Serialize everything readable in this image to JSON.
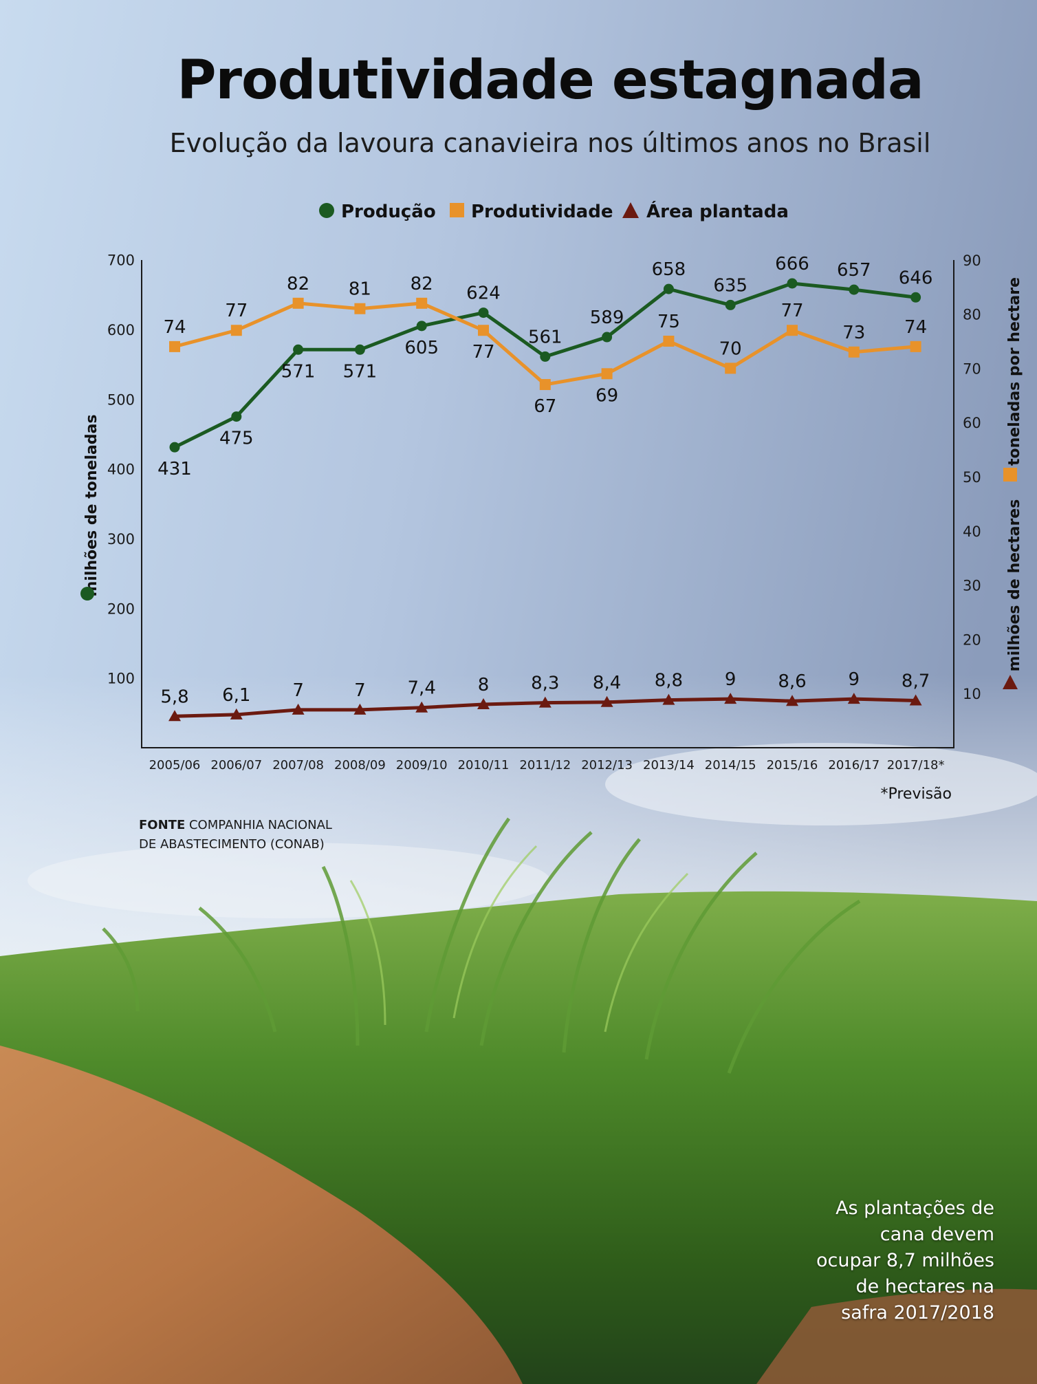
{
  "header": {
    "title": "Produtividade estagnada",
    "subtitle": "Evolução da lavoura canavieira nos últimos anos no Brasil"
  },
  "source": {
    "label": "FONTE",
    "line1": "COMPANHIA NACIONAL",
    "line2": "DE ABASTECIMENTO (CONAB)"
  },
  "footnote": "*Previsão",
  "caption": {
    "line1": "As plantações de",
    "line2": "cana devem",
    "line3": "ocupar 8,7 milhões",
    "line4": "de hectares na",
    "line5": "safra 2017/2018"
  },
  "colors": {
    "producao": "#1b5a21",
    "produtividade": "#e8922a",
    "area": "#6b1a10",
    "axis": "#1a1a1a"
  },
  "chart_data": {
    "type": "line",
    "title": "Produtividade estagnada",
    "subtitle": "Evolução da lavoura canavieira nos últimos anos no Brasil",
    "categories": [
      "2005/06",
      "2006/07",
      "2007/08",
      "2008/09",
      "2009/10",
      "2010/11",
      "2011/12",
      "2012/13",
      "2013/14",
      "2014/15",
      "2015/16",
      "2016/17",
      "2017/18*"
    ],
    "series": [
      {
        "name": "Produção",
        "axis": "left",
        "marker": "circle",
        "values": [
          431,
          475,
          571,
          571,
          605,
          624,
          561,
          589,
          658,
          635,
          666,
          657,
          646
        ],
        "labels": [
          "431",
          "475",
          "571",
          "571",
          "605",
          "624",
          "561",
          "589",
          "658",
          "635",
          "666",
          "657",
          "646"
        ],
        "label_positions": [
          "below",
          "below",
          "below",
          "below",
          "below",
          "above",
          "above",
          "above",
          "above",
          "above",
          "above",
          "above",
          "above"
        ]
      },
      {
        "name": "Produtividade",
        "axis": "right",
        "marker": "square",
        "values": [
          74,
          77,
          82,
          81,
          82,
          77,
          67,
          69,
          75,
          70,
          77,
          73,
          74
        ],
        "labels": [
          "74",
          "77",
          "82",
          "81",
          "82",
          "77",
          "67",
          "69",
          "75",
          "70",
          "77",
          "73",
          "74"
        ],
        "label_positions": [
          "above",
          "above",
          "above",
          "above",
          "above",
          "below",
          "below",
          "below",
          "above",
          "above",
          "above",
          "above",
          "above"
        ]
      },
      {
        "name": "Área plantada",
        "axis": "right",
        "marker": "triangle",
        "values": [
          5.8,
          6.1,
          7,
          7,
          7.4,
          8,
          8.3,
          8.4,
          8.8,
          9,
          8.6,
          9,
          8.7
        ],
        "labels": [
          "5,8",
          "6,1",
          "7",
          "7",
          "7,4",
          "8",
          "8,3",
          "8,4",
          "8,8",
          "9",
          "8,6",
          "9",
          "8,7"
        ],
        "label_positions": [
          "above",
          "above",
          "above",
          "above",
          "above",
          "above",
          "above",
          "above",
          "above",
          "above",
          "above",
          "above",
          "above"
        ]
      }
    ],
    "y_left": {
      "label": "milhões de toneladas",
      "ticks": [
        100,
        200,
        300,
        400,
        500,
        600,
        700
      ],
      "tick_labels": [
        "100",
        "200",
        "300",
        "400",
        "500",
        "600",
        "700"
      ],
      "range": [
        0,
        700
      ]
    },
    "y_right": {
      "labels": [
        "toneladas por hectare",
        "milhões de hectares"
      ],
      "ticks": [
        10,
        20,
        30,
        40,
        50,
        60,
        70,
        80,
        90
      ],
      "tick_labels": [
        "10",
        "20",
        "30",
        "40",
        "50",
        "60",
        "70",
        "80",
        "90"
      ],
      "range": [
        0,
        90
      ]
    },
    "legend": {
      "position": "top-center",
      "items": [
        "Produção",
        "Produtividade",
        "Área plantada"
      ]
    },
    "grid": false
  }
}
